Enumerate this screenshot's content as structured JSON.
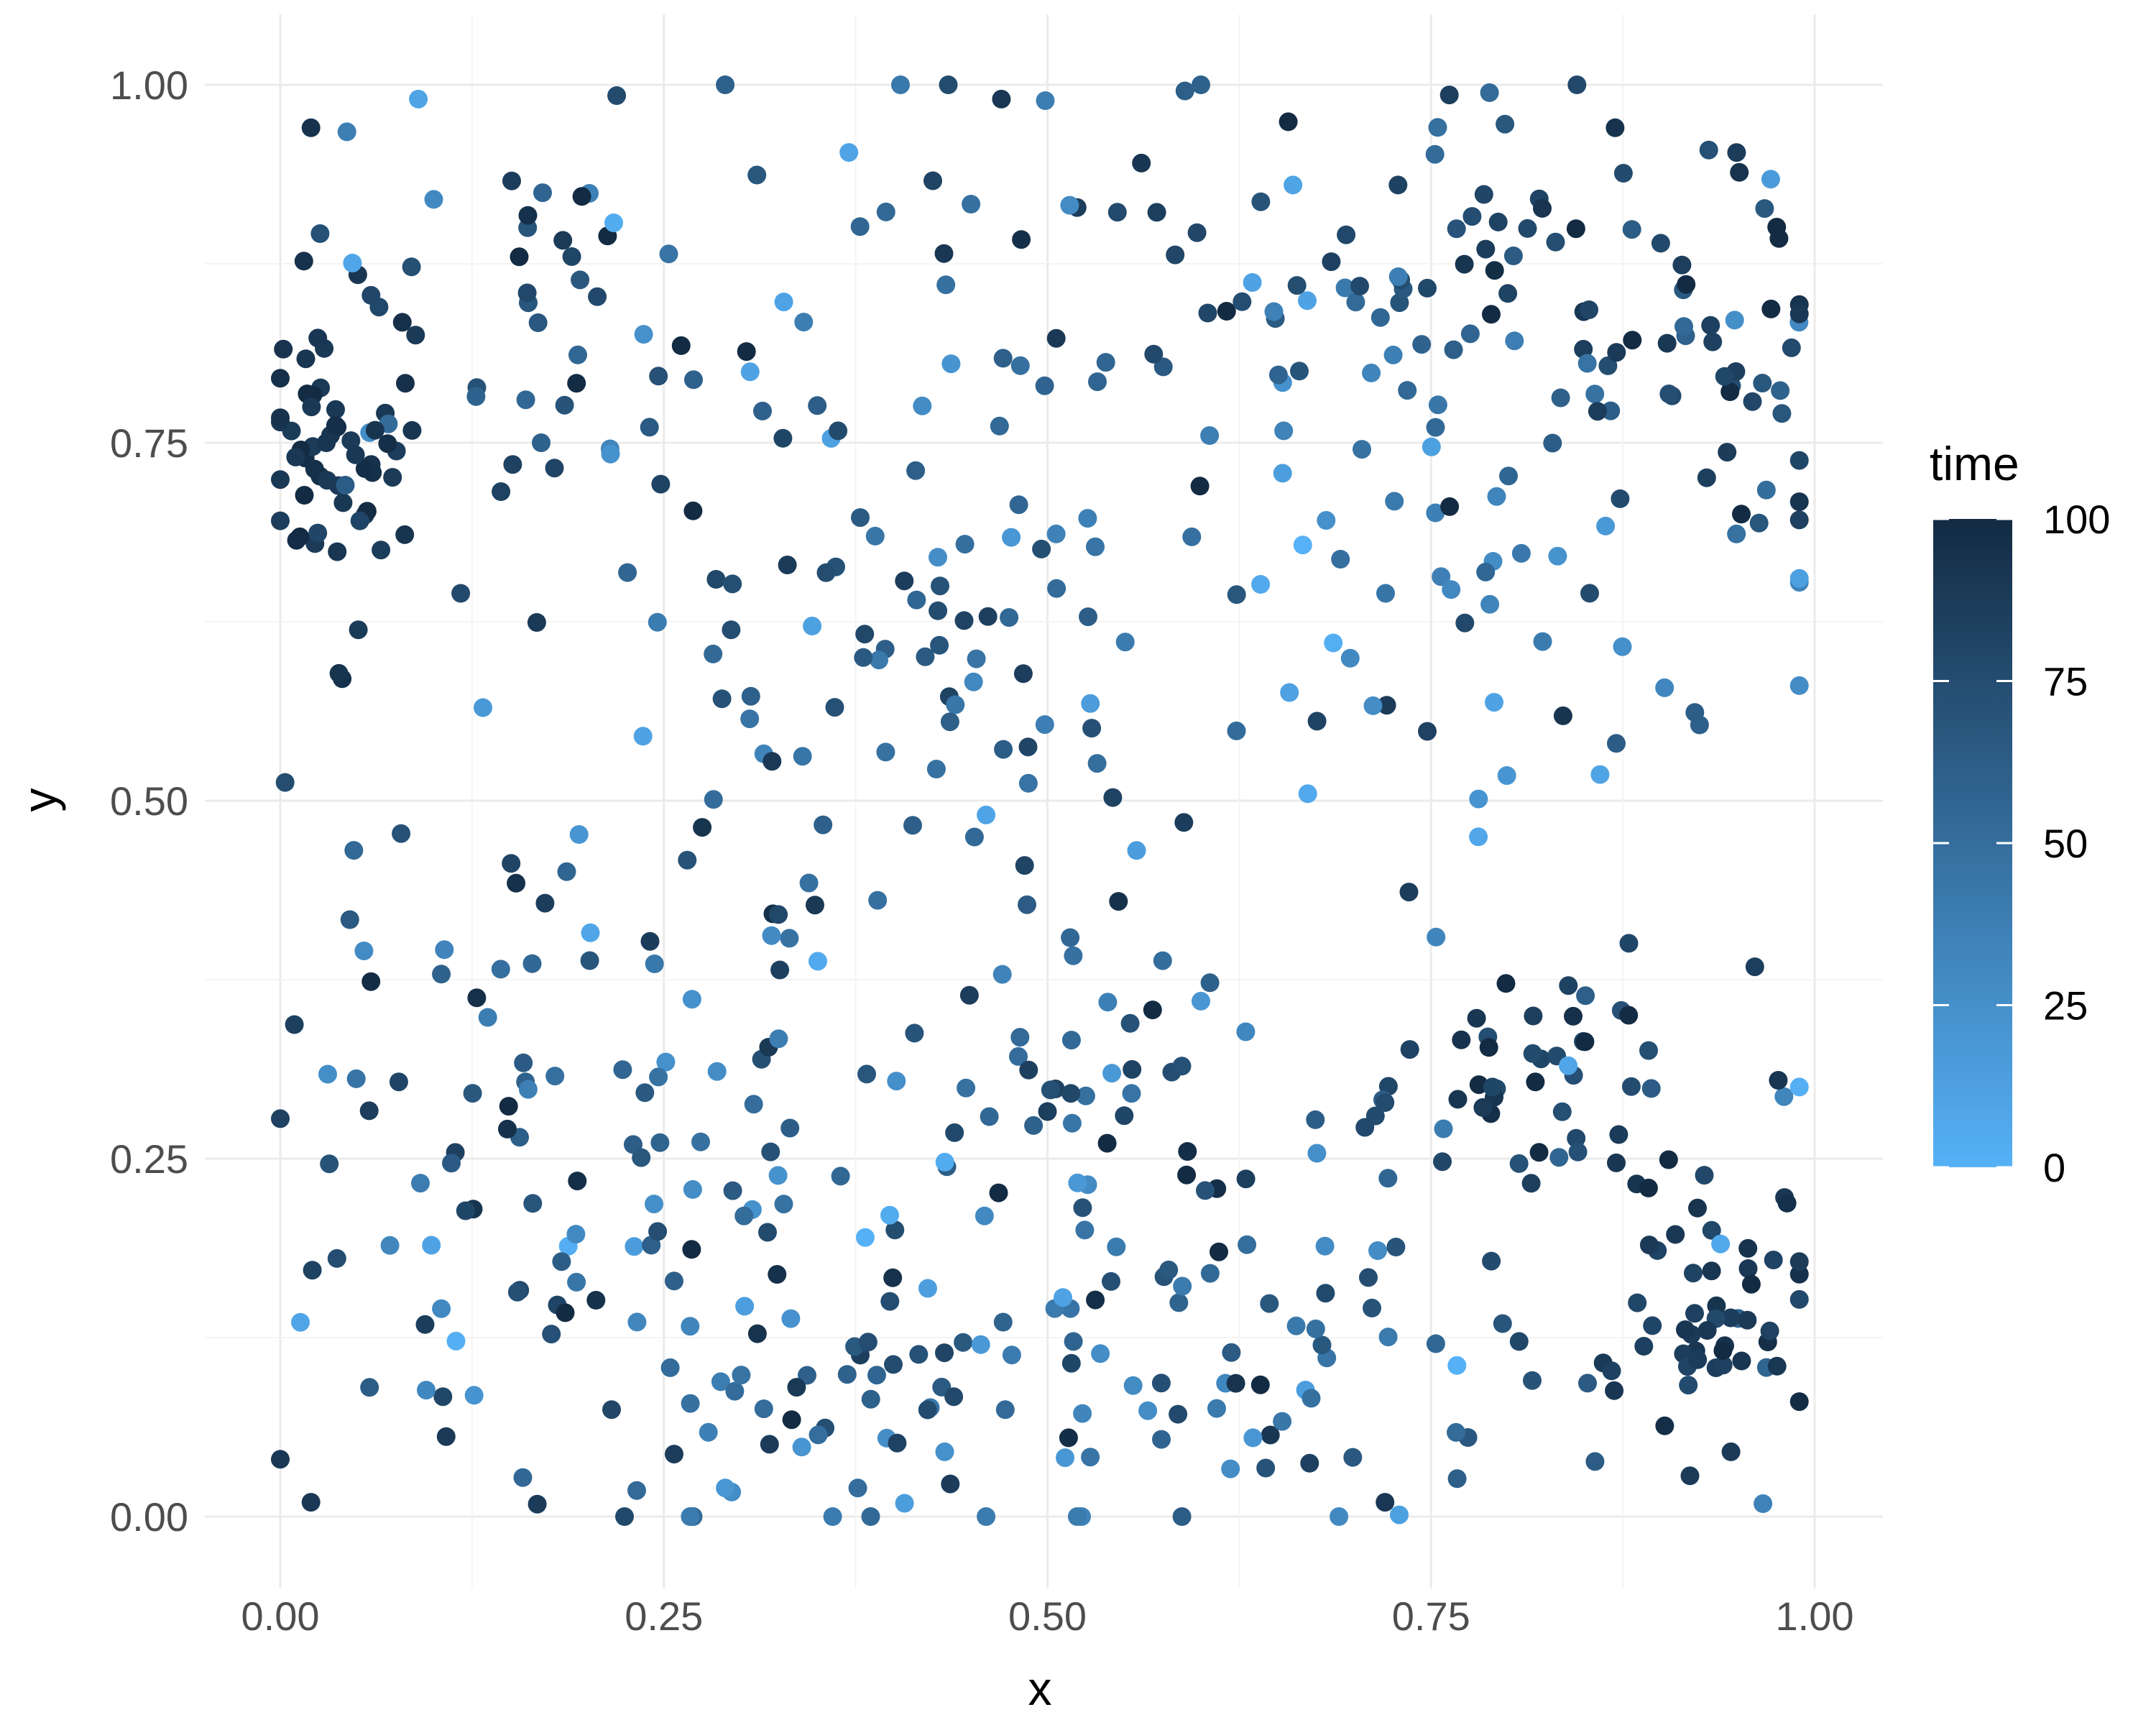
{
  "chart_data": {
    "type": "scatter",
    "title": "",
    "xlabel": "x",
    "ylabel": "y",
    "xlim": [
      0,
      1
    ],
    "ylim": [
      0,
      1
    ],
    "x_ticks": [
      "0.00",
      "0.25",
      "0.50",
      "0.75",
      "1.00"
    ],
    "y_ticks": [
      "0.00",
      "0.25",
      "0.50",
      "0.75",
      "1.00"
    ],
    "grid": true,
    "color_scale": {
      "title": "time",
      "min": 0,
      "max": 100,
      "ticks": [
        "0",
        "25",
        "50",
        "75",
        "100"
      ],
      "low_color": "#56B1F7",
      "high_color": "#132B43"
    },
    "legend_position": "right",
    "point_count": 760,
    "points_sample": [
      [
        0.01,
        0.74,
        90
      ],
      [
        0.02,
        0.97,
        95
      ],
      [
        0.03,
        0.75,
        92
      ],
      [
        0.09,
        0.99,
        10
      ],
      [
        0.1,
        0.92,
        30
      ],
      [
        0.16,
        0.78,
        55
      ],
      [
        0.17,
        0.75,
        60
      ],
      [
        0.19,
        0.88,
        80
      ],
      [
        0.29,
        1.0,
        60
      ],
      [
        0.47,
        0.99,
        90
      ],
      [
        0.6,
        1.0,
        60
      ],
      [
        0.87,
        0.97,
        95
      ],
      [
        0.66,
        0.93,
        10
      ],
      [
        0.99,
        0.84,
        90
      ],
      [
        0.43,
        0.65,
        70
      ],
      [
        0.38,
        0.6,
        65
      ],
      [
        0.46,
        0.49,
        10
      ],
      [
        0.6,
        0.36,
        20
      ],
      [
        0.55,
        0.28,
        80
      ],
      [
        0.79,
        0.3,
        80
      ],
      [
        0.93,
        0.13,
        90
      ],
      [
        0.0,
        0.04,
        90
      ],
      [
        0.02,
        0.01,
        90
      ],
      [
        0.29,
        0.02,
        20
      ],
      [
        0.36,
        0.0,
        40
      ],
      [
        0.46,
        0.0,
        40
      ],
      [
        0.69,
        0.0,
        30
      ],
      [
        0.72,
        0.01,
        90
      ]
    ]
  }
}
